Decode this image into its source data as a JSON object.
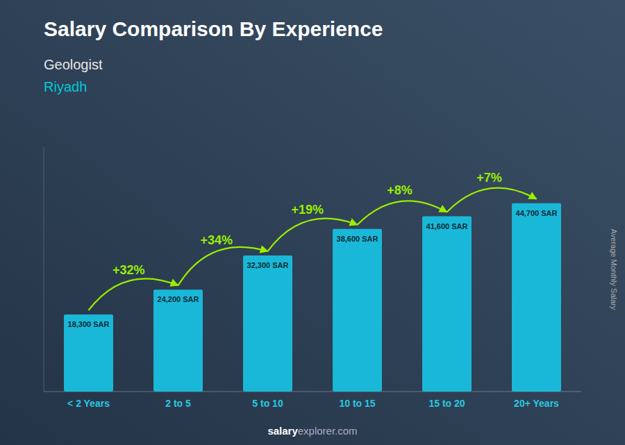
{
  "chart_data": {
    "type": "bar",
    "title": "Salary Comparison By Experience",
    "subtitle": [
      "Geologist",
      "Riyadh"
    ],
    "categories": [
      "< 2 Years",
      "2 to 5",
      "5 to 10",
      "10 to 15",
      "15 to 20",
      "20+ Years"
    ],
    "values": [
      18300,
      24200,
      32300,
      38600,
      41600,
      44700
    ],
    "value_labels": [
      "18,300 SAR",
      "24,200 SAR",
      "32,300 SAR",
      "38,600 SAR",
      "41,600 SAR",
      "44,700 SAR"
    ],
    "data_labels": true,
    "annotations": [
      "+32%",
      "+34%",
      "+19%",
      "+8%",
      "+7%"
    ],
    "ylabel": "Average Monthly Salary",
    "footer": [
      "salary",
      "explorer.com"
    ],
    "color": "#1ab8d8",
    "ylim": [
      0,
      58000
    ],
    "tick_labels": "x",
    "grid": false
  }
}
